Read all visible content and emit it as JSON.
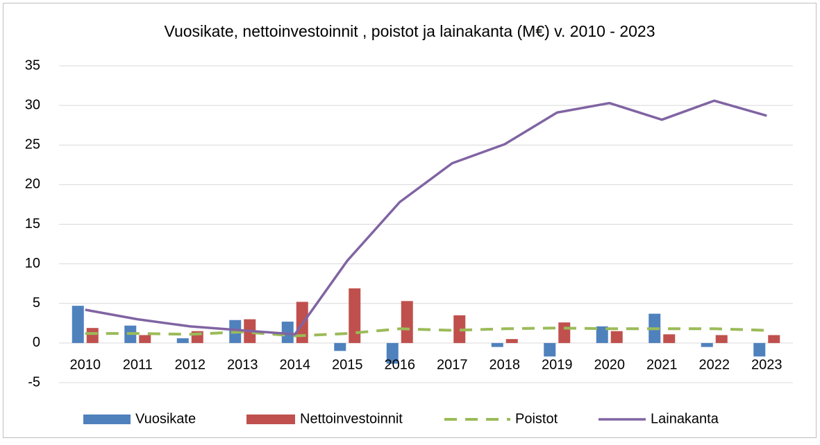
{
  "chart_data": {
    "type": "combo",
    "title": "Vuosikate, nettoinvestoinnit , poistot ja lainakanta (M€) v. 2010 - 2023",
    "categories": [
      "2010",
      "2011",
      "2012",
      "2013",
      "2014",
      "2015",
      "2016",
      "2017",
      "2018",
      "2019",
      "2020",
      "2021",
      "2022",
      "2023"
    ],
    "series": [
      {
        "name": "Vuosikate",
        "type": "bar",
        "color": "#4f81bd",
        "values": [
          4.7,
          2.2,
          0.6,
          2.9,
          2.7,
          -1.0,
          -2.6,
          0,
          -0.5,
          -1.7,
          2.1,
          3.7,
          -0.5,
          -1.7
        ]
      },
      {
        "name": "Nettoinvestoinnit",
        "type": "bar",
        "color": "#c0504d",
        "values": [
          1.9,
          1.0,
          1.5,
          3.0,
          5.2,
          6.9,
          5.3,
          3.5,
          0.5,
          2.6,
          1.5,
          1.1,
          1.0,
          1.0
        ]
      },
      {
        "name": "Poistot",
        "type": "line",
        "dashed": true,
        "color": "#9bbb59",
        "values": [
          1.2,
          1.2,
          1.1,
          1.4,
          0.9,
          1.2,
          1.8,
          1.6,
          1.8,
          1.9,
          1.8,
          1.8,
          1.8,
          1.6
        ]
      },
      {
        "name": "Lainakanta",
        "type": "line",
        "dashed": false,
        "color": "#8064a2",
        "values": [
          4.2,
          3.0,
          2.1,
          1.6,
          1.1,
          10.4,
          17.8,
          22.7,
          25.1,
          29.1,
          30.3,
          28.2,
          30.6,
          28.7
        ]
      }
    ],
    "ylim": [
      -5,
      35
    ],
    "yticks": [
      -5,
      0,
      5,
      10,
      15,
      20,
      25,
      30,
      35
    ],
    "grid": true,
    "legend": "bottom"
  }
}
